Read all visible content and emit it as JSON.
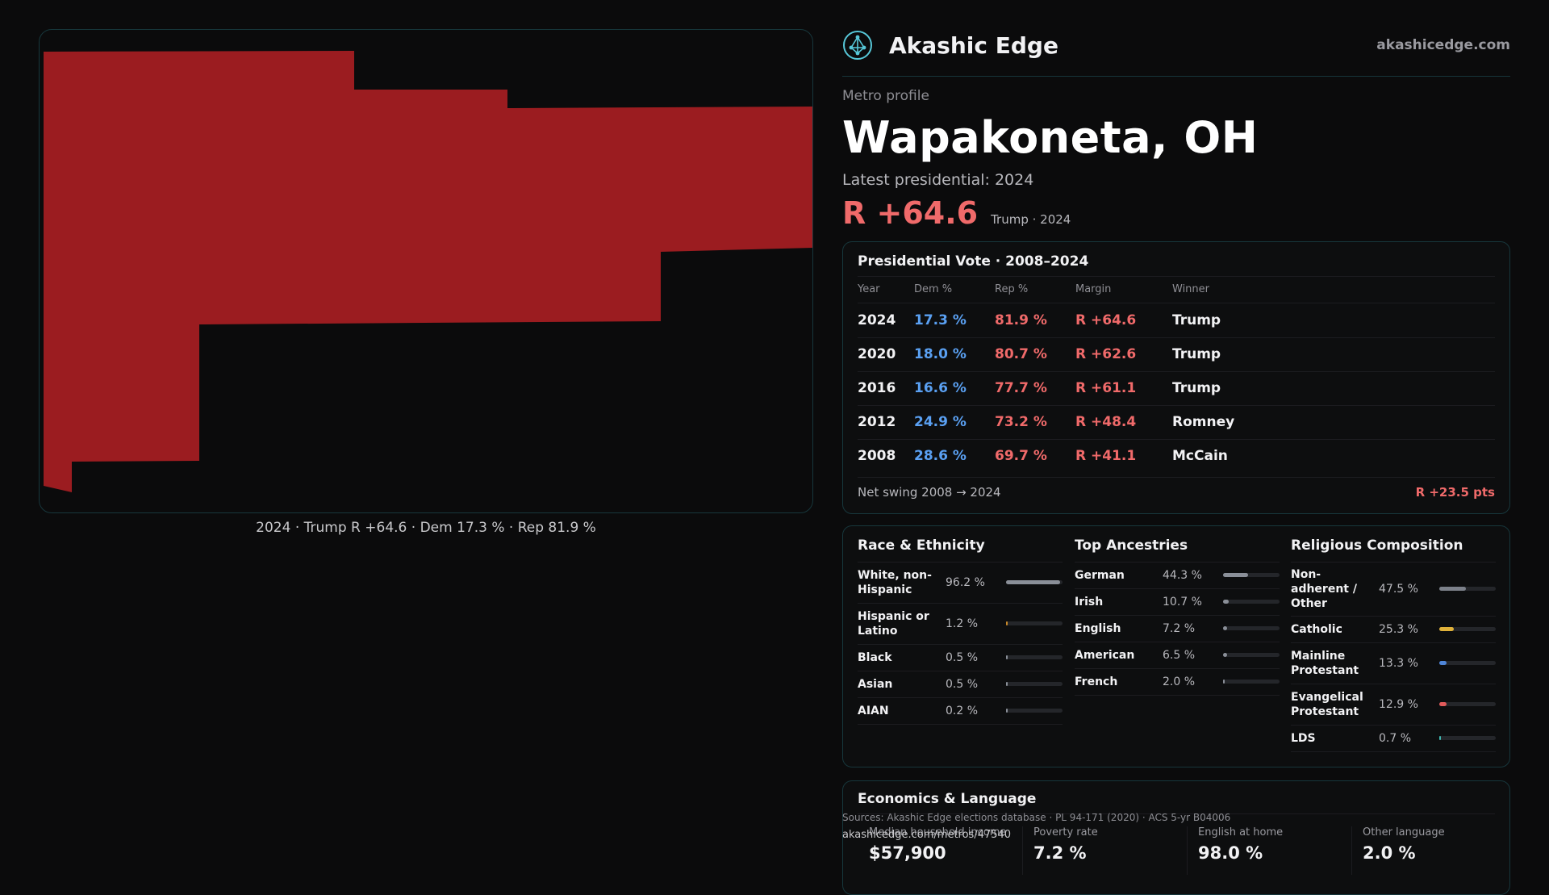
{
  "map": {
    "caption": "2024 · Trump R +64.6 · Dem 17.3 % · Rep 81.9 %",
    "fill_color": "#9b1c20"
  },
  "brand": {
    "name": "Akashic Edge",
    "url": "akashicedge.com",
    "logo_icon": "globe-network-icon"
  },
  "profile": {
    "eyebrow": "Metro profile",
    "title": "Wapakoneta, OH",
    "latest_label": "Latest presidential: 2024",
    "headline_margin": "R +64.6",
    "headline_note": "Trump · 2024"
  },
  "vote": {
    "title": "Presidential Vote · 2008–2024",
    "headers": {
      "year": "Year",
      "dem": "Dem %",
      "rep": "Rep %",
      "margin": "Margin",
      "winner": "Winner"
    },
    "rows": [
      {
        "year": "2024",
        "dem": "17.3 %",
        "rep": "81.9 %",
        "margin": "R +64.6",
        "winner": "Trump"
      },
      {
        "year": "2020",
        "dem": "18.0 %",
        "rep": "80.7 %",
        "margin": "R +62.6",
        "winner": "Trump"
      },
      {
        "year": "2016",
        "dem": "16.6 %",
        "rep": "77.7 %",
        "margin": "R +61.1",
        "winner": "Trump"
      },
      {
        "year": "2012",
        "dem": "24.9 %",
        "rep": "73.2 %",
        "margin": "R +48.4",
        "winner": "Romney"
      },
      {
        "year": "2008",
        "dem": "28.6 %",
        "rep": "69.7 %",
        "margin": "R +41.1",
        "winner": "McCain"
      }
    ],
    "swing_label": "Net swing 2008 → 2024",
    "swing_value": "R +23.5 pts",
    "colors": {
      "dem": "#5aa0f2",
      "rep": "#f06a6a"
    }
  },
  "race": {
    "title": "Race & Ethnicity",
    "items": [
      {
        "label": "White, non-Hispanic",
        "pct": "96.2 %",
        "value": 96.2,
        "color": "#8a8f98"
      },
      {
        "label": "Hispanic or Latino",
        "pct": "1.2 %",
        "value": 1.2,
        "color": "#c98a2a"
      },
      {
        "label": "Black",
        "pct": "0.5 %",
        "value": 0.5,
        "color": "#8a8f98"
      },
      {
        "label": "Asian",
        "pct": "0.5 %",
        "value": 0.5,
        "color": "#8a8f98"
      },
      {
        "label": "AIAN",
        "pct": "0.2 %",
        "value": 0.2,
        "color": "#8a8f98"
      }
    ]
  },
  "ancestry": {
    "title": "Top Ancestries",
    "items": [
      {
        "label": "German",
        "pct": "44.3 %",
        "value": 44.3,
        "color": "#8a8f98"
      },
      {
        "label": "Irish",
        "pct": "10.7 %",
        "value": 10.7,
        "color": "#8a8f98"
      },
      {
        "label": "English",
        "pct": "7.2 %",
        "value": 7.2,
        "color": "#8a8f98"
      },
      {
        "label": "American",
        "pct": "6.5 %",
        "value": 6.5,
        "color": "#8a8f98"
      },
      {
        "label": "French",
        "pct": "2.0 %",
        "value": 2.0,
        "color": "#8a8f98"
      }
    ]
  },
  "religion": {
    "title": "Religious Composition",
    "items": [
      {
        "label": "Non-adherent / Other",
        "pct": "47.5 %",
        "value": 47.5,
        "color": "#7c818a"
      },
      {
        "label": "Catholic",
        "pct": "25.3 %",
        "value": 25.3,
        "color": "#e0b23a"
      },
      {
        "label": "Mainline Protestant",
        "pct": "13.3 %",
        "value": 13.3,
        "color": "#4f86d8"
      },
      {
        "label": "Evangelical Protestant",
        "pct": "12.9 %",
        "value": 12.9,
        "color": "#e05a5a"
      },
      {
        "label": "LDS",
        "pct": "0.7 %",
        "value": 0.7,
        "color": "#3fb8b0"
      }
    ]
  },
  "economics": {
    "title": "Economics & Language",
    "cells": [
      {
        "label": "Median household income",
        "value": "$57,900"
      },
      {
        "label": "Poverty rate",
        "value": "7.2 %"
      },
      {
        "label": "English at home",
        "value": "98.0 %"
      },
      {
        "label": "Other language",
        "value": "2.0 %"
      }
    ]
  },
  "footer": {
    "sources": "Sources: Akashic Edge elections database · PL 94-171 (2020) · ACS 5-yr B04006",
    "permalink": "akashicedge.com/metros/47540"
  }
}
